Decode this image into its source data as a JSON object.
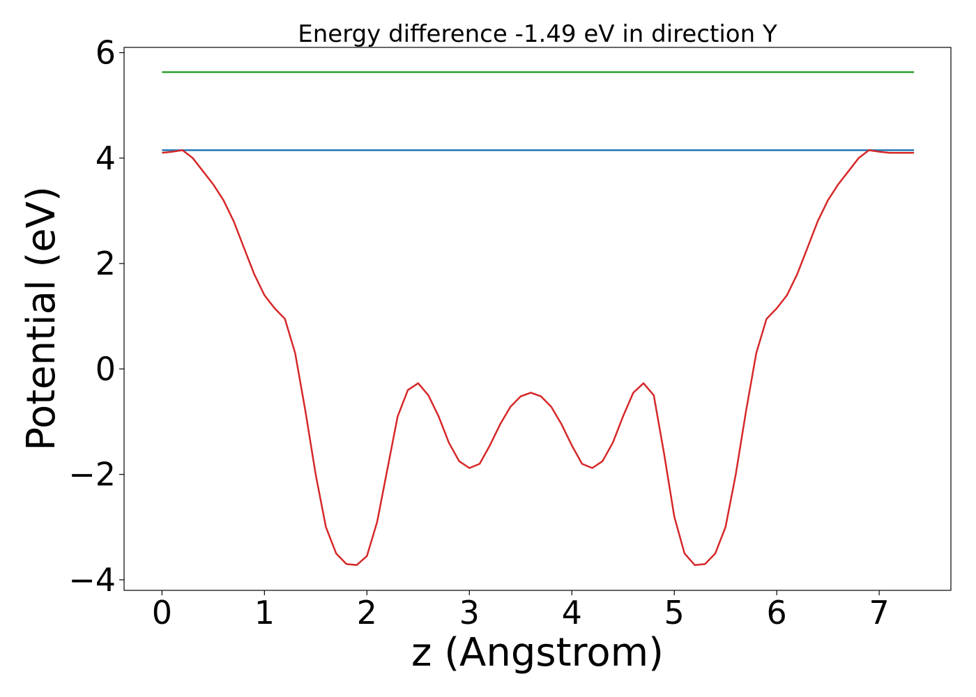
{
  "chart_data": {
    "type": "line",
    "title": "Energy difference -1.49 eV in direction Y",
    "xlabel": "z (Angstrom)",
    "ylabel": "Potential (eV)",
    "xlim": [
      -0.37,
      7.7
    ],
    "ylim": [
      -4.2,
      6.1
    ],
    "xticks": [
      0,
      1,
      2,
      3,
      4,
      5,
      6,
      7
    ],
    "xtick_labels": [
      "0",
      "1",
      "2",
      "3",
      "4",
      "5",
      "6",
      "7"
    ],
    "yticks": [
      -4,
      -2,
      0,
      2,
      4,
      6
    ],
    "ytick_labels": [
      "−4",
      "−2",
      "0",
      "2",
      "4",
      "6"
    ],
    "grid": false,
    "legend": "none",
    "series": [
      {
        "color": "#2ca02c",
        "x": [
          0,
          7.34
        ],
        "y": [
          5.63,
          5.63
        ]
      },
      {
        "color": "#1f77b4",
        "x": [
          0,
          7.34
        ],
        "y": [
          4.15,
          4.15
        ]
      },
      {
        "color": "#d62728",
        "x": [
          0,
          0.1,
          0.2,
          0.3,
          0.4,
          0.5,
          0.6,
          0.7,
          0.8,
          0.9,
          1.0,
          1.1,
          1.2,
          1.3,
          1.4,
          1.5,
          1.6,
          1.7,
          1.8,
          1.9,
          2.0,
          2.1,
          2.2,
          2.3,
          2.4,
          2.5,
          2.6,
          2.7,
          2.8,
          2.9,
          3.0,
          3.1,
          3.2,
          3.3,
          3.4,
          3.5,
          3.6,
          3.7,
          3.8,
          3.9,
          4.0,
          4.1,
          4.2,
          4.3,
          4.4,
          4.5,
          4.6,
          4.7,
          4.8,
          4.9,
          5.0,
          5.1,
          5.2,
          5.3,
          5.4,
          5.5,
          5.6,
          5.7,
          5.8,
          5.9,
          6.0,
          6.1,
          6.2,
          6.3,
          6.4,
          6.5,
          6.6,
          6.7,
          6.8,
          6.9,
          7.0,
          7.1,
          7.2,
          7.34
        ],
        "y": [
          4.1,
          4.12,
          4.15,
          4.0,
          3.75,
          3.5,
          3.2,
          2.8,
          2.3,
          1.8,
          1.4,
          1.15,
          0.95,
          0.3,
          -0.8,
          -2.0,
          -3.0,
          -3.5,
          -3.7,
          -3.72,
          -3.55,
          -2.9,
          -1.9,
          -0.9,
          -0.4,
          -0.27,
          -0.5,
          -0.9,
          -1.4,
          -1.75,
          -1.88,
          -1.8,
          -1.45,
          -1.05,
          -0.72,
          -0.52,
          -0.45,
          -0.52,
          -0.72,
          -1.05,
          -1.45,
          -1.8,
          -1.88,
          -1.75,
          -1.4,
          -0.9,
          -0.45,
          -0.27,
          -0.5,
          -1.6,
          -2.8,
          -3.5,
          -3.72,
          -3.7,
          -3.5,
          -3.0,
          -2.0,
          -0.8,
          0.3,
          0.95,
          1.15,
          1.4,
          1.8,
          2.3,
          2.8,
          3.2,
          3.5,
          3.75,
          4.0,
          4.15,
          4.12,
          4.1,
          4.1,
          4.1
        ]
      }
    ]
  }
}
